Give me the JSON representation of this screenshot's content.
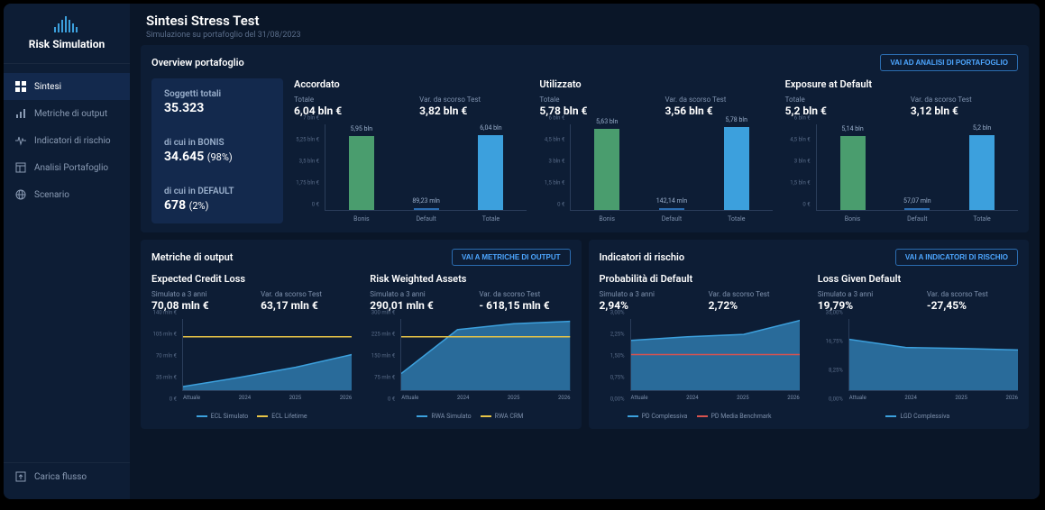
{
  "app": {
    "name": "Risk Simulation"
  },
  "header": {
    "title": "Sintesi Stress Test",
    "subtitle": "Simulazione su portafoglio del 31/08/2023"
  },
  "nav": {
    "items": [
      {
        "label": "Sintesi",
        "icon": "dashboard",
        "active": true
      },
      {
        "label": "Metriche di output",
        "icon": "bars",
        "active": false
      },
      {
        "label": "Indicatori di rischio",
        "icon": "pulse",
        "active": false
      },
      {
        "label": "Analisi Portafoglio",
        "icon": "layout",
        "active": false
      },
      {
        "label": "Scenario",
        "icon": "globe",
        "active": false
      }
    ],
    "bottom": {
      "label": "Carica flusso",
      "icon": "upload"
    }
  },
  "overview": {
    "title": "Overview portafoglio",
    "button": "VAI AD ANALISI DI PORTAFOGLIO",
    "stats": {
      "totali_label": "Soggetti totali",
      "totali_value": "35.323",
      "bonis_label": "di cui in BONIS",
      "bonis_value": "34.645",
      "bonis_pct": "(98%)",
      "default_label": "di cui in DEFAULT",
      "default_value": "678",
      "default_pct": "(2%)"
    },
    "charts": [
      {
        "title": "Accordato",
        "totale_label": "Totale",
        "totale_value": "6,04 bln €",
        "var_label": "Var. da scorso Test",
        "var_value": "3,82 bln €",
        "ymax": 7,
        "yticks": [
          "0 €",
          "1,75 bln €",
          "3,5 bln €",
          "5,25 bln €",
          "7 bln €"
        ],
        "bars": [
          {
            "cat": "Bonis",
            "label": "5,95 bln",
            "value": 5.95,
            "color": "#4a9d6e"
          },
          {
            "cat": "Default",
            "label": "89,23 mln",
            "value": 0.089,
            "color": "#2b6cb0"
          },
          {
            "cat": "Totale",
            "label": "6,04 bln",
            "value": 6.04,
            "color": "#3ca0dd"
          }
        ]
      },
      {
        "title": "Utilizzato",
        "totale_label": "Totale",
        "totale_value": "5,78 bln €",
        "var_label": "Var. da scorso Test",
        "var_value": "3,56 bln €",
        "ymax": 6,
        "yticks": [
          "0 €",
          "1,5 bln €",
          "3 bln €",
          "4,5 bln €",
          "6 bln €"
        ],
        "bars": [
          {
            "cat": "Bonis",
            "label": "5,63 bln",
            "value": 5.63,
            "color": "#4a9d6e"
          },
          {
            "cat": "Default",
            "label": "142,14 mln",
            "value": 0.142,
            "color": "#2b6cb0"
          },
          {
            "cat": "Totale",
            "label": "5,78 bln",
            "value": 5.78,
            "color": "#3ca0dd"
          }
        ]
      },
      {
        "title": "Exposure at Default",
        "totale_label": "Totale",
        "totale_value": "5,2 bln €",
        "var_label": "Var. da scorso Test",
        "var_value": "3,12 bln €",
        "ymax": 6,
        "yticks": [
          "0 €",
          "1,5 bln €",
          "3 bln €",
          "4,5 bln €",
          "6 bln €"
        ],
        "bars": [
          {
            "cat": "Bonis",
            "label": "5,14 bln",
            "value": 5.14,
            "color": "#4a9d6e"
          },
          {
            "cat": "Default",
            "label": "57,07 mln",
            "value": 0.057,
            "color": "#2b6cb0"
          },
          {
            "cat": "Totale",
            "label": "5,2 bln",
            "value": 5.2,
            "color": "#3ca0dd"
          }
        ]
      }
    ]
  },
  "metriche": {
    "title": "Metriche di output",
    "button": "VAI A METRICHE DI OUTPUT",
    "charts": [
      {
        "title": "Expected Credit Loss",
        "sim_label": "Simulato a 3 anni",
        "sim_value": "70,08 mln €",
        "var_label": "Var. da scorso Test",
        "var_value": "63,17 mln €",
        "ymax": 140,
        "yticks": [
          "0 €",
          "35 mln €",
          "70 mln €",
          "105 mln €",
          "140 mln €"
        ],
        "xlabels": [
          "Attuale",
          "2024",
          "2025",
          "2026"
        ],
        "series": [
          {
            "name": "ECL Simulato",
            "color": "#3ca0dd",
            "type": "area",
            "values": [
              7,
              25,
              45,
              70
            ]
          },
          {
            "name": "ECL Lifetime",
            "color": "#e8c547",
            "type": "line",
            "values": [
              105,
              105,
              105,
              105
            ]
          }
        ]
      },
      {
        "title": "Risk Weighted Assets",
        "sim_label": "Simulato a 3 anni",
        "sim_value": "290,01 mln €",
        "var_label": "Var. da scorso Test",
        "var_value": "- 618,15 mln €",
        "ymax": 300,
        "yticks": [
          "0 €",
          "75 mln €",
          "150 mln €",
          "225 mln €",
          "300 mln €"
        ],
        "xlabels": [
          "Attuale",
          "2024",
          "2025",
          "2026"
        ],
        "series": [
          {
            "name": "RWA Simulato",
            "color": "#3ca0dd",
            "type": "area",
            "values": [
              70,
              255,
              280,
              290
            ]
          },
          {
            "name": "RWA CRM",
            "color": "#e8c547",
            "type": "line",
            "values": [
              225,
              225,
              225,
              225
            ]
          }
        ]
      }
    ]
  },
  "indicatori": {
    "title": "Indicatori di rischio",
    "button": "VAI A INDICATORI DI RISCHIO",
    "charts": [
      {
        "title": "Probabilità di Default",
        "sim_label": "Simulato a 3 anni",
        "sim_value": "2,94%",
        "var_label": "Var. da scorso Test",
        "var_value": "2,72%",
        "ymax": 3,
        "yticks": [
          "0,00%",
          "0,75%",
          "1,50%",
          "2,25%",
          "3,00%"
        ],
        "xlabels": [
          "Attuale",
          "2024",
          "2025",
          "2026"
        ],
        "series": [
          {
            "name": "PD Complessiva",
            "color": "#3ca0dd",
            "type": "area",
            "values": [
              2.1,
              2.25,
              2.35,
              2.94
            ]
          },
          {
            "name": "PD Media Benchmark",
            "color": "#d9534f",
            "type": "line",
            "values": [
              1.5,
              1.5,
              1.5,
              1.5
            ]
          }
        ]
      },
      {
        "title": "Loss Given Default",
        "sim_label": "Simulato a 3 anni",
        "sim_value": "19,79%",
        "var_label": "Var. da scorso Test",
        "var_value": "-27,45%",
        "ymax": 35,
        "yticks": [
          "0,00%",
          "8,25%",
          "16,75%",
          "35,00%"
        ],
        "xlabels": [
          "Attuale",
          "2024",
          "2025",
          "2026"
        ],
        "series": [
          {
            "name": "LGD Complessiva",
            "color": "#3ca0dd",
            "type": "area",
            "values": [
              25,
              21,
              20.5,
              19.79
            ]
          }
        ]
      }
    ]
  },
  "colors": {
    "bg": "#0a1628",
    "panel": "#0d1d35",
    "panel_alt": "#13294d",
    "text": "#ffffff",
    "text_muted": "#7d90ac",
    "accent": "#3ca0dd",
    "green": "#4a9d6e",
    "yellow": "#e8c547",
    "red": "#d9534f",
    "grid": "#2a3d5a"
  }
}
